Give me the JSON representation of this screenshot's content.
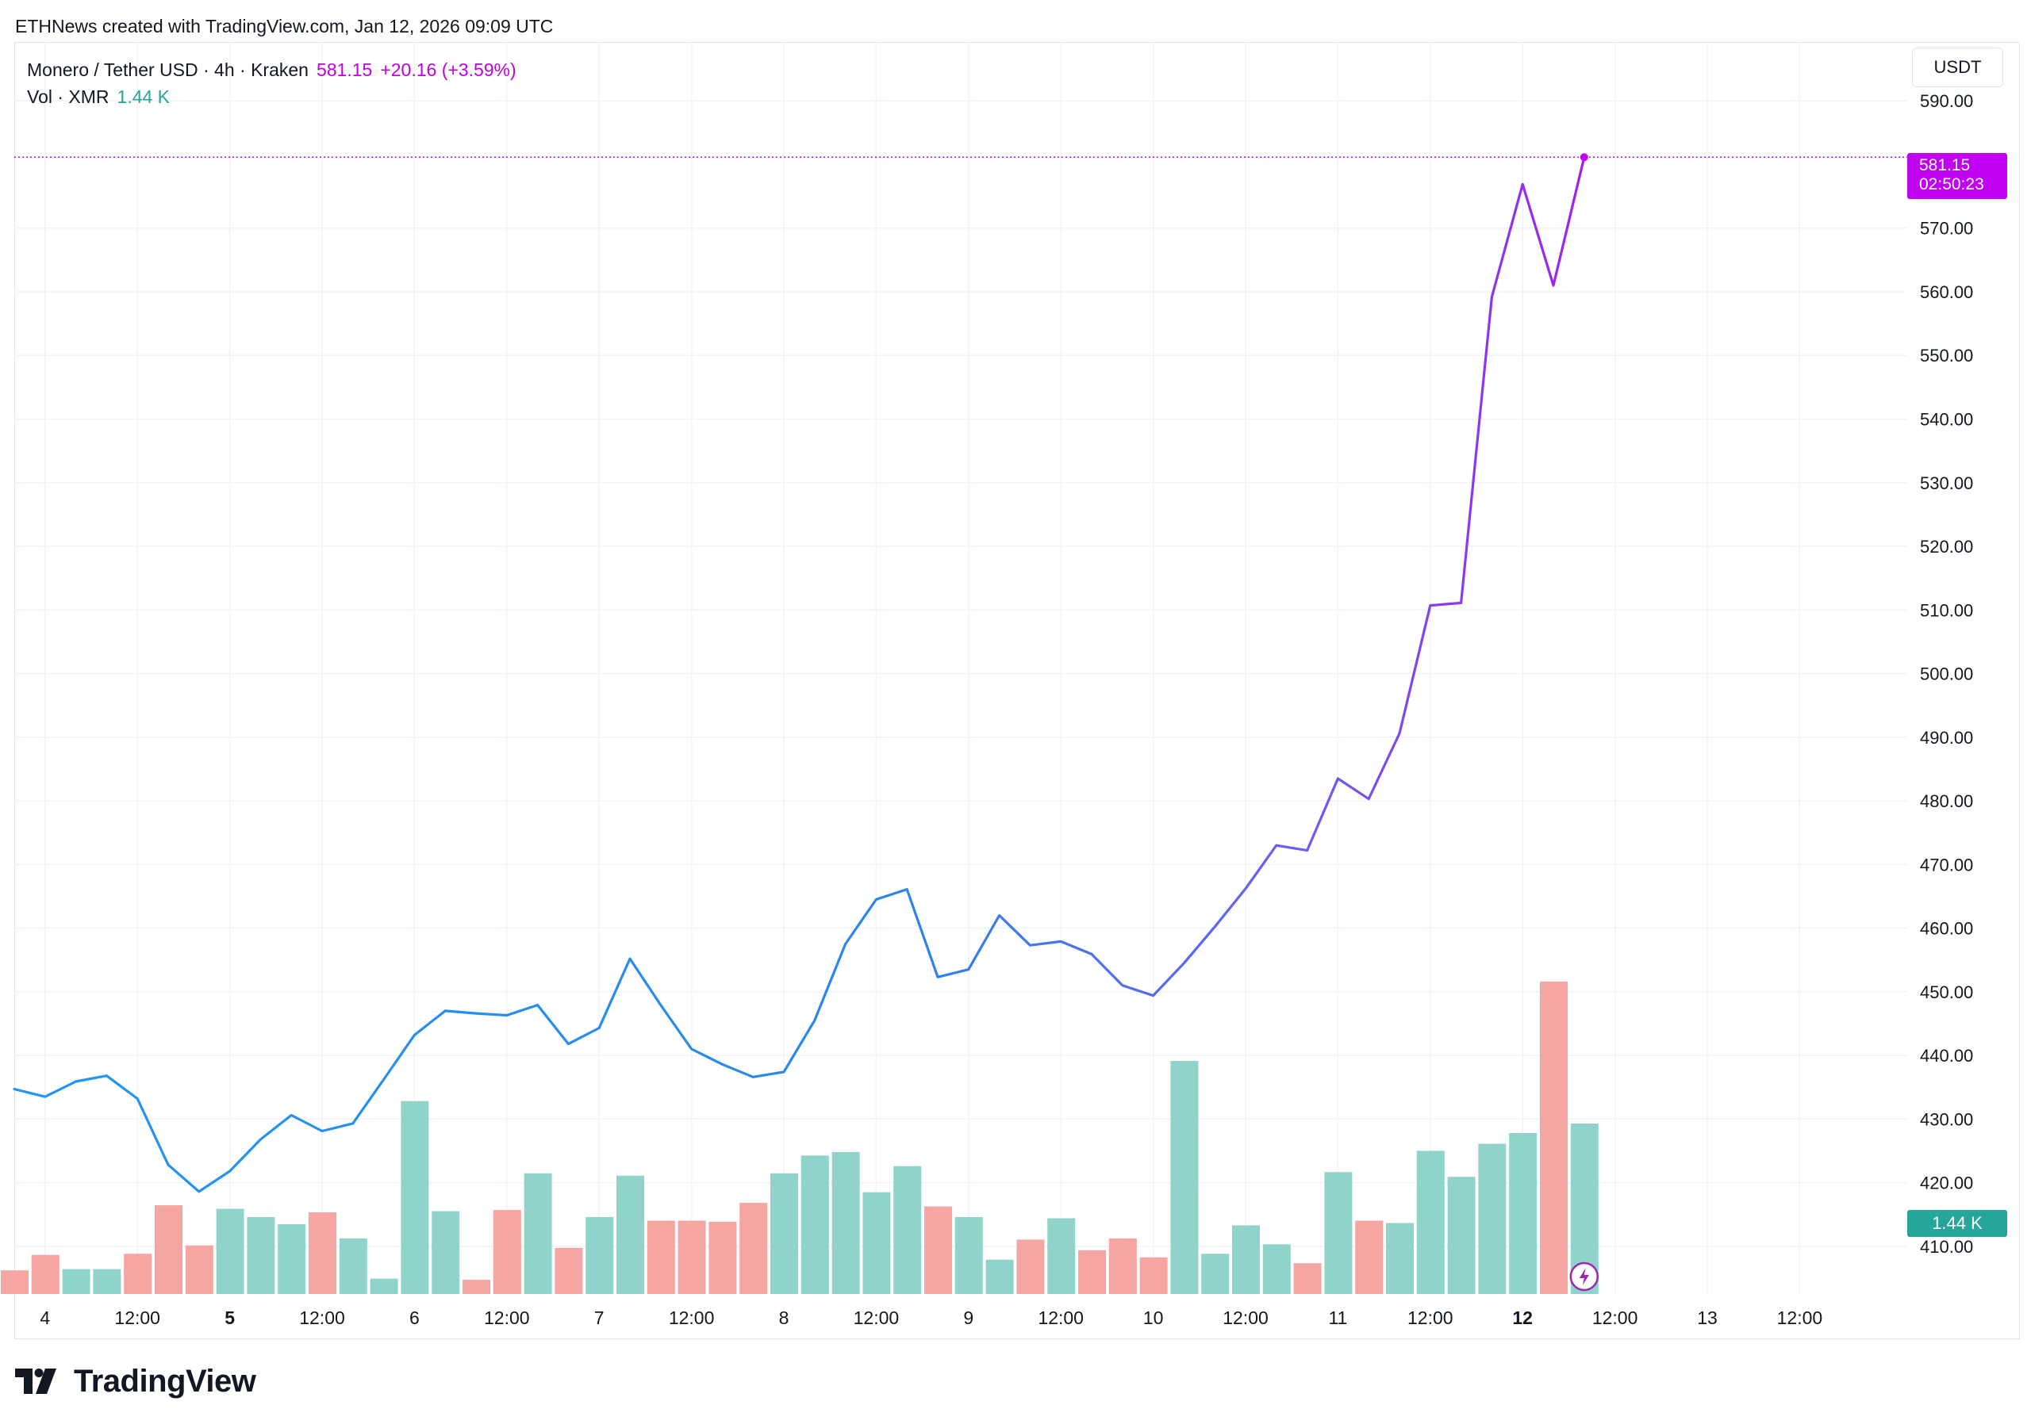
{
  "header": {
    "credit": "ETHNews created with TradingView.com, Jan 12, 2026 09:09 UTC"
  },
  "legend": {
    "symbol": "Monero / Tether USD · 4h · Kraken",
    "last_price": "581.15",
    "change": "+20.16 (+3.59%)",
    "vol_label": "Vol · XMR",
    "vol_value": "1.44 K"
  },
  "currency_button": "USDT",
  "price_tag": {
    "price": "581.15",
    "countdown": "02:50:23"
  },
  "volume_tag": "1.44 K",
  "logo_text": "TradingView",
  "colors": {
    "line_blue": "#2196f3",
    "line_purple": "#a020f0",
    "vol_up": "#8fd3ca",
    "vol_down": "#f5a6a2",
    "price_accent": "#c000f0"
  },
  "chart_data": {
    "type": "line",
    "title": "Monero / Tether USD · 4h · Kraken",
    "ylabel": "USDT",
    "ylim": [
      402.5,
      599
    ],
    "y_ticks": [
      "590.00",
      "570.00",
      "560.00",
      "550.00",
      "540.00",
      "530.00",
      "520.00",
      "510.00",
      "500.00",
      "490.00",
      "480.00",
      "470.00",
      "460.00",
      "450.00",
      "440.00",
      "430.00",
      "420.00",
      "410.00"
    ],
    "x_ticks": [
      {
        "label": "4",
        "bold": false,
        "index": 1
      },
      {
        "label": "12:00",
        "bold": false,
        "index": 4
      },
      {
        "label": "5",
        "bold": true,
        "index": 7
      },
      {
        "label": "12:00",
        "bold": false,
        "index": 10
      },
      {
        "label": "6",
        "bold": false,
        "index": 13
      },
      {
        "label": "12:00",
        "bold": false,
        "index": 16
      },
      {
        "label": "7",
        "bold": false,
        "index": 19
      },
      {
        "label": "12:00",
        "bold": false,
        "index": 22
      },
      {
        "label": "8",
        "bold": false,
        "index": 25
      },
      {
        "label": "12:00",
        "bold": false,
        "index": 28
      },
      {
        "label": "9",
        "bold": false,
        "index": 31
      },
      {
        "label": "12:00",
        "bold": false,
        "index": 34
      },
      {
        "label": "10",
        "bold": false,
        "index": 37
      },
      {
        "label": "12:00",
        "bold": false,
        "index": 40
      },
      {
        "label": "11",
        "bold": false,
        "index": 43
      },
      {
        "label": "12:00",
        "bold": false,
        "index": 46
      },
      {
        "label": "12",
        "bold": true,
        "index": 49
      },
      {
        "label": "12:00",
        "bold": false,
        "index": 52
      },
      {
        "label": "13",
        "bold": false,
        "index": 55
      },
      {
        "label": "12:00",
        "bold": false,
        "index": 58
      }
    ],
    "x_max_index": 62,
    "series": [
      {
        "name": "XMRUSDT close",
        "values": [
          434.7,
          433.5,
          435.9,
          436.8,
          433.2,
          422.8,
          418.6,
          421.8,
          426.8,
          430.6,
          428.1,
          429.3,
          436.2,
          443.2,
          447.0,
          446.6,
          446.3,
          447.9,
          441.8,
          444.3,
          455.2,
          447.9,
          441.0,
          438.6,
          436.6,
          437.4,
          445.5,
          457.5,
          464.5,
          466.1,
          452.3,
          453.5,
          462.0,
          457.3,
          457.9,
          455.9,
          451.0,
          449.4,
          454.5,
          460.2,
          466.2,
          473.0,
          472.2,
          483.5,
          480.3,
          490.6,
          510.7,
          511.1,
          559.2,
          576.9,
          561.0,
          581.15
        ]
      },
      {
        "name": "Volume (XMR)",
        "values": [
          0.2,
          0.33,
          0.21,
          0.21,
          0.34,
          0.75,
          0.41,
          0.72,
          0.65,
          0.59,
          0.69,
          0.47,
          0.13,
          1.63,
          0.7,
          0.12,
          0.71,
          1.02,
          0.39,
          0.65,
          1.0,
          0.62,
          0.62,
          0.61,
          0.77,
          1.02,
          1.17,
          1.2,
          0.86,
          1.08,
          0.74,
          0.65,
          0.29,
          0.46,
          0.64,
          0.37,
          0.47,
          0.31,
          1.97,
          0.34,
          0.58,
          0.42,
          0.26,
          1.03,
          0.62,
          0.6,
          1.21,
          0.99,
          1.27,
          1.36,
          2.64,
          1.44
        ],
        "direction": [
          "down",
          "down",
          "up",
          "up",
          "down",
          "down",
          "down",
          "up",
          "up",
          "up",
          "down",
          "up",
          "up",
          "up",
          "up",
          "down",
          "down",
          "up",
          "down",
          "up",
          "up",
          "down",
          "down",
          "down",
          "down",
          "up",
          "up",
          "up",
          "up",
          "up",
          "down",
          "up",
          "up",
          "down",
          "up",
          "down",
          "down",
          "down",
          "up",
          "up",
          "up",
          "up",
          "down",
          "up",
          "down",
          "up",
          "up",
          "up",
          "up",
          "up",
          "down",
          "up"
        ]
      }
    ],
    "last_value_label": "581.15",
    "volume_scale_max_k": 2.64
  }
}
